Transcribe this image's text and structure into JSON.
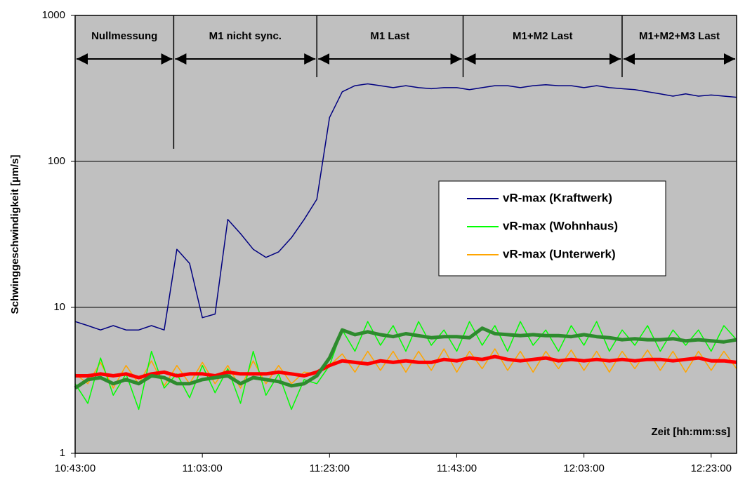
{
  "chart_data": {
    "type": "line",
    "y_label": "Schwinggeschwindigkeit [µm/s]",
    "x_label": "Zeit [hh:mm:ss]",
    "log_y": true,
    "grid": true,
    "ylim": [
      1,
      1000
    ],
    "yticks": [
      1,
      10,
      100,
      1000
    ],
    "xlim": [
      "10:43:00",
      "12:27:00"
    ],
    "xticks": [
      "10:43:00",
      "11:03:00",
      "11:23:00",
      "11:43:00",
      "12:03:00",
      "12:23:00"
    ],
    "phases": [
      {
        "label": "Nullmessung",
        "start": "10:43:00",
        "end": "10:58:30"
      },
      {
        "label": "M1 nicht sync.",
        "start": "10:58:30",
        "end": "11:21:00"
      },
      {
        "label": "M1 Last",
        "start": "11:21:00",
        "end": "11:44:00"
      },
      {
        "label": "M1+M2 Last",
        "start": "11:44:00",
        "end": "12:09:00"
      },
      {
        "label": "M1+M2+M3 Last",
        "start": "12:09:00",
        "end": "12:27:00"
      }
    ],
    "x": [
      "10:43:00",
      "10:45:00",
      "10:47:00",
      "10:49:00",
      "10:51:00",
      "10:53:00",
      "10:55:00",
      "10:57:00",
      "10:59:00",
      "11:01:00",
      "11:03:00",
      "11:05:00",
      "11:07:00",
      "11:09:00",
      "11:11:00",
      "11:13:00",
      "11:15:00",
      "11:17:00",
      "11:19:00",
      "11:21:00",
      "11:23:00",
      "11:25:00",
      "11:27:00",
      "11:29:00",
      "11:31:00",
      "11:33:00",
      "11:35:00",
      "11:37:00",
      "11:39:00",
      "11:41:00",
      "11:43:00",
      "11:45:00",
      "11:47:00",
      "11:49:00",
      "11:51:00",
      "11:53:00",
      "11:55:00",
      "11:57:00",
      "11:59:00",
      "12:01:00",
      "12:03:00",
      "12:05:00",
      "12:07:00",
      "12:09:00",
      "12:11:00",
      "12:13:00",
      "12:15:00",
      "12:17:00",
      "12:19:00",
      "12:21:00",
      "12:23:00",
      "12:25:00",
      "12:27:00"
    ],
    "series": [
      {
        "name": "vR-max (Kraftwerk)",
        "color": "#000080",
        "width": 1.5,
        "values": [
          8,
          7.5,
          7,
          7.5,
          7,
          7,
          7.5,
          7,
          25,
          20,
          8.5,
          9,
          40,
          32,
          25,
          22,
          24,
          30,
          40,
          55,
          200,
          300,
          330,
          340,
          330,
          320,
          330,
          320,
          315,
          320,
          320,
          310,
          320,
          330,
          330,
          320,
          330,
          335,
          330,
          330,
          320,
          330,
          320,
          315,
          310,
          300,
          290,
          280,
          290,
          280,
          285,
          280,
          275
        ]
      },
      {
        "name": "vR-max (Wohnhaus)",
        "color": "#00ff00",
        "width": 1.5,
        "values": [
          3,
          2.2,
          4.5,
          2.5,
          3.5,
          2,
          5,
          2.8,
          3.5,
          2.4,
          4,
          2.6,
          3.8,
          2.2,
          5,
          2.5,
          3.5,
          2,
          3.2,
          3,
          4,
          7,
          5,
          8,
          5.5,
          7.5,
          5,
          8,
          5.5,
          7,
          5,
          8,
          5.5,
          7.5,
          5,
          8,
          5.5,
          7,
          5,
          7.5,
          5.5,
          8,
          5,
          7,
          5.5,
          7.5,
          5,
          7,
          5.5,
          7,
          5,
          7.5,
          6
        ]
      },
      {
        "name": "vR-max (Unterwerk)",
        "color": "#ffa500",
        "width": 1.5,
        "values": [
          3.5,
          3,
          4.2,
          2.8,
          4,
          3,
          4.3,
          2.9,
          4,
          3,
          4.2,
          3,
          4,
          2.8,
          4.3,
          3,
          4,
          3,
          3.6,
          3.5,
          4,
          4.8,
          3.6,
          5,
          3.7,
          5,
          3.6,
          5,
          3.7,
          5.2,
          3.6,
          5,
          3.8,
          5.2,
          3.7,
          5,
          3.6,
          5,
          3.8,
          5.1,
          3.7,
          5,
          3.6,
          5,
          3.8,
          5.1,
          3.7,
          5,
          3.6,
          5,
          3.7,
          5,
          3.8
        ]
      },
      {
        "color": "#2e8b2e",
        "width": 5,
        "values": [
          2.8,
          3.2,
          3.3,
          3,
          3.2,
          3,
          3.4,
          3.3,
          3,
          3,
          3.2,
          3.3,
          3.4,
          3,
          3.3,
          3.2,
          3.1,
          2.9,
          3,
          3.4,
          4.5,
          7,
          6.5,
          6.8,
          6.5,
          6.3,
          6.6,
          6.4,
          6.2,
          6.3,
          6.3,
          6.2,
          7.2,
          6.6,
          6.5,
          6.4,
          6.5,
          6.4,
          6.4,
          6.3,
          6.5,
          6.3,
          6.2,
          6,
          6.1,
          6,
          6,
          6.1,
          5.9,
          6,
          5.9,
          5.8,
          6
        ]
      },
      {
        "color": "#ff0000",
        "width": 5,
        "values": [
          3.4,
          3.4,
          3.5,
          3.4,
          3.5,
          3.3,
          3.5,
          3.6,
          3.4,
          3.5,
          3.5,
          3.4,
          3.6,
          3.5,
          3.5,
          3.5,
          3.6,
          3.5,
          3.4,
          3.6,
          4,
          4.3,
          4.2,
          4.1,
          4.3,
          4.2,
          4.3,
          4.2,
          4.2,
          4.4,
          4.3,
          4.5,
          4.4,
          4.6,
          4.4,
          4.3,
          4.4,
          4.5,
          4.3,
          4.4,
          4.3,
          4.4,
          4.3,
          4.4,
          4.3,
          4.4,
          4.4,
          4.3,
          4.4,
          4.5,
          4.3,
          4.3,
          4.2
        ]
      }
    ]
  }
}
